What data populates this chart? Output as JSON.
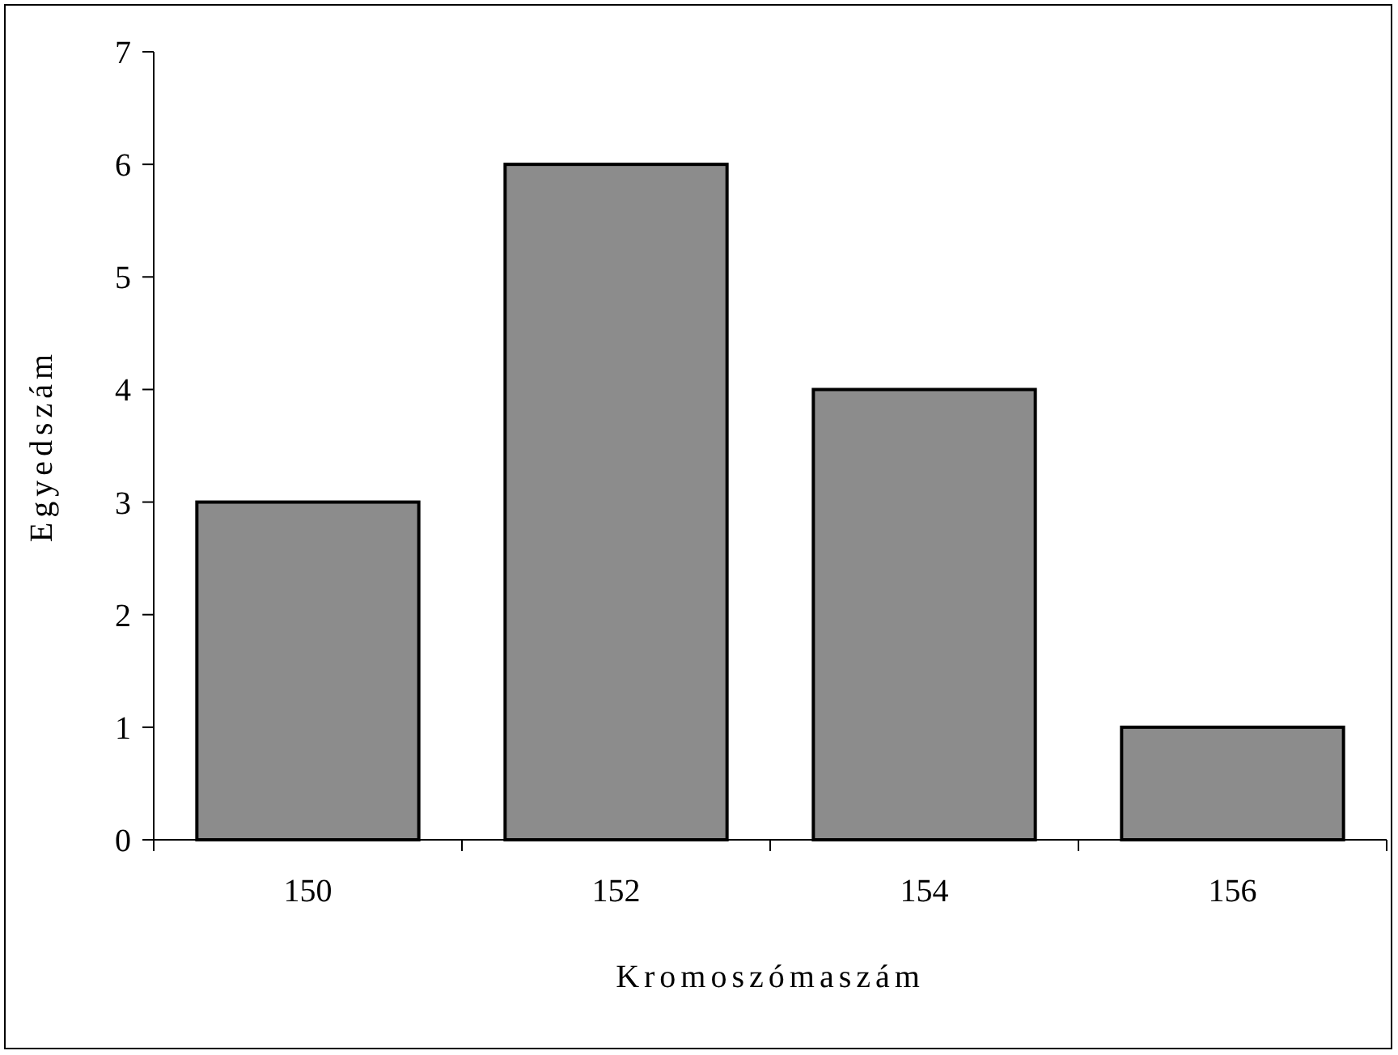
{
  "chart_data": {
    "type": "bar",
    "xlabel": "Kromoszómaszám",
    "ylabel": "Egyedszám",
    "categories": [
      "150",
      "152",
      "154",
      "156"
    ],
    "values": [
      3,
      6,
      4,
      1
    ],
    "color": "#8c8c8c",
    "ylim": [
      0,
      7
    ],
    "yticks": [
      0,
      1,
      2,
      3,
      4,
      5,
      6,
      7
    ],
    "grid": false
  }
}
